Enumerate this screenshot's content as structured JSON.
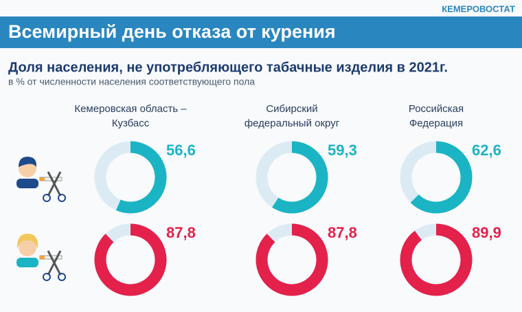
{
  "header": {
    "brand": "КЕМЕРОВОСТАТ",
    "title": "Всемирный день отказа от курения"
  },
  "chart_data": {
    "type": "donut",
    "title": "Доля населения, не употребляющего табачные изделия в 2021г.",
    "subtitle": "в % от численности населения соответствующего пола",
    "categories": [
      "Кемеровская область –\nКузбасс",
      "Сибирский\nфедеральный округ",
      "Российская\nФедерация"
    ],
    "ylim": [
      0,
      100
    ],
    "track_color": "#dcebf3",
    "series": [
      {
        "color": "#1bb4c4",
        "values": [
          56.6,
          59.3,
          62.6
        ],
        "value_labels": [
          "56,6",
          "59,3",
          "62,6"
        ]
      },
      {
        "color": "#e3214a",
        "values": [
          87.8,
          87.8,
          89.9
        ],
        "value_labels": [
          "87,8",
          "87,8",
          "89,9"
        ]
      }
    ]
  }
}
